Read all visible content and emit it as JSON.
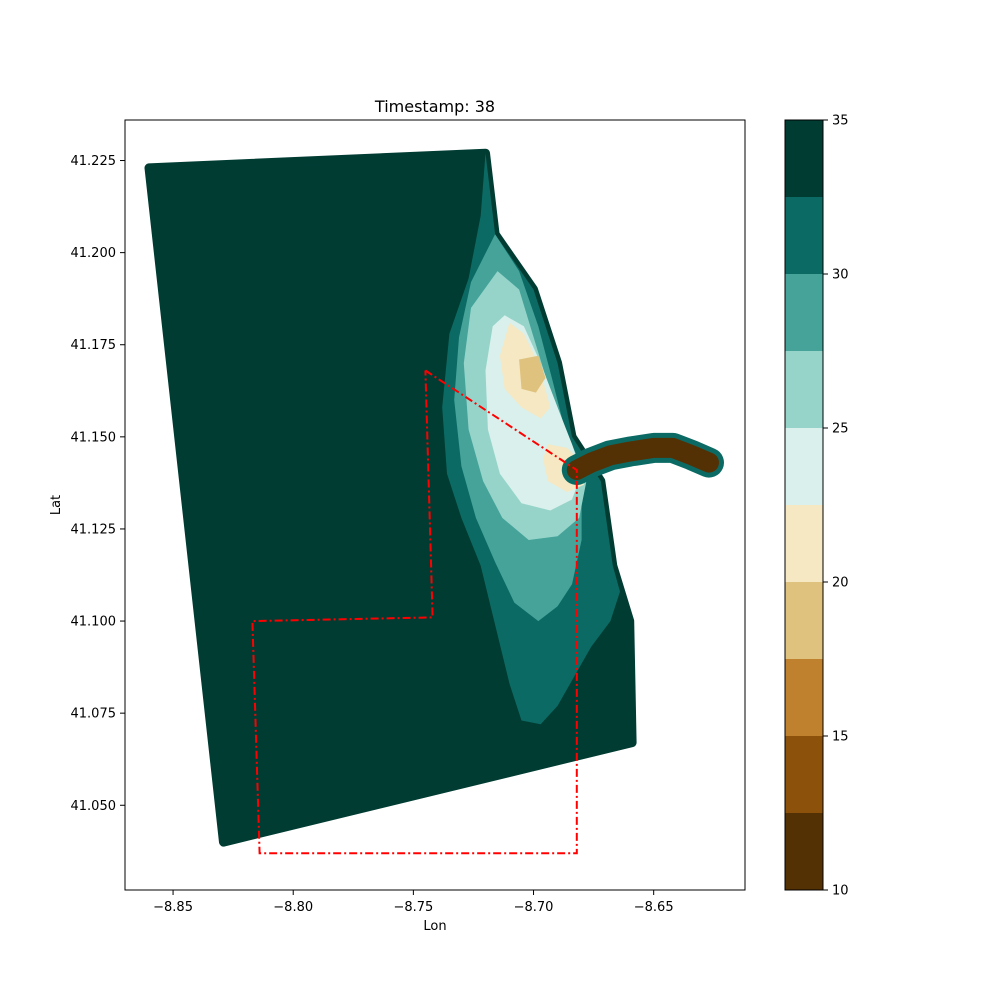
{
  "chart_data": {
    "type": "heatmap",
    "title": "Timestamp: 38",
    "xlabel": "Lon",
    "ylabel": "Lat",
    "xlim": [
      -8.87,
      -8.612
    ],
    "ylim": [
      41.027,
      41.236
    ],
    "x_ticks": [
      -8.85,
      -8.8,
      -8.75,
      -8.7,
      -8.65
    ],
    "x_tick_labels": [
      "−8.85",
      "−8.80",
      "−8.75",
      "−8.70",
      "−8.65"
    ],
    "y_ticks": [
      41.05,
      41.075,
      41.1,
      41.125,
      41.15,
      41.175,
      41.2,
      41.225
    ],
    "y_tick_labels": [
      "41.050",
      "41.075",
      "41.100",
      "41.125",
      "41.150",
      "41.175",
      "41.200",
      "41.225"
    ],
    "colorbar": {
      "range": [
        10,
        35
      ],
      "levels": [
        10,
        12.5,
        15,
        17.5,
        20,
        22.5,
        25,
        27.5,
        30,
        32.5,
        35
      ],
      "colors": [
        "#543005",
        "#8c510a",
        "#bf812d",
        "#dfc27d",
        "#f6e8c3",
        "#d9f0ec",
        "#96d4ca",
        "#45a39a",
        "#0b6b64",
        "#013c33"
      ],
      "ticks": [
        10,
        15,
        20,
        25,
        30,
        35
      ],
      "tick_labels": [
        "10",
        "15",
        "20",
        "25",
        "30",
        "35"
      ]
    },
    "domain_outline": [
      [
        -8.86,
        41.223
      ],
      [
        -8.72,
        41.227
      ],
      [
        -8.716,
        41.205
      ],
      [
        -8.7,
        41.19
      ],
      [
        -8.69,
        41.17
      ],
      [
        -8.684,
        41.15
      ],
      [
        -8.672,
        41.138
      ],
      [
        -8.667,
        41.115
      ],
      [
        -8.66,
        41.1
      ],
      [
        -8.659,
        41.067
      ],
      [
        -8.829,
        41.04
      ]
    ],
    "zones": [
      {
        "value": 31,
        "polygon": [
          [
            -8.72,
            41.227
          ],
          [
            -8.716,
            41.205
          ],
          [
            -8.7,
            41.19
          ],
          [
            -8.69,
            41.17
          ],
          [
            -8.684,
            41.15
          ],
          [
            -8.672,
            41.138
          ],
          [
            -8.667,
            41.115
          ],
          [
            -8.664,
            41.108
          ],
          [
            -8.668,
            41.1
          ],
          [
            -8.676,
            41.093
          ],
          [
            -8.683,
            41.085
          ],
          [
            -8.69,
            41.077
          ],
          [
            -8.697,
            41.072
          ],
          [
            -8.705,
            41.073
          ],
          [
            -8.71,
            41.083
          ],
          [
            -8.716,
            41.099
          ],
          [
            -8.722,
            41.115
          ],
          [
            -8.73,
            41.128
          ],
          [
            -8.736,
            41.14
          ],
          [
            -8.738,
            41.158
          ],
          [
            -8.735,
            41.178
          ],
          [
            -8.727,
            41.193
          ],
          [
            -8.722,
            41.21
          ]
        ]
      },
      {
        "value": 28.5,
        "polygon": [
          [
            -8.716,
            41.205
          ],
          [
            -8.706,
            41.195
          ],
          [
            -8.698,
            41.18
          ],
          [
            -8.692,
            41.165
          ],
          [
            -8.687,
            41.152
          ],
          [
            -8.68,
            41.14
          ],
          [
            -8.68,
            41.122
          ],
          [
            -8.684,
            41.11
          ],
          [
            -8.69,
            41.104
          ],
          [
            -8.698,
            41.1
          ],
          [
            -8.708,
            41.105
          ],
          [
            -8.716,
            41.116
          ],
          [
            -8.724,
            41.128
          ],
          [
            -8.73,
            41.142
          ],
          [
            -8.733,
            41.16
          ],
          [
            -8.731,
            41.177
          ],
          [
            -8.726,
            41.192
          ]
        ]
      },
      {
        "value": 26,
        "polygon": [
          [
            -8.715,
            41.195
          ],
          [
            -8.706,
            41.19
          ],
          [
            -8.699,
            41.175
          ],
          [
            -8.692,
            41.16
          ],
          [
            -8.684,
            41.148
          ],
          [
            -8.678,
            41.138
          ],
          [
            -8.681,
            41.128
          ],
          [
            -8.69,
            41.123
          ],
          [
            -8.702,
            41.122
          ],
          [
            -8.713,
            41.128
          ],
          [
            -8.721,
            41.138
          ],
          [
            -8.727,
            41.152
          ],
          [
            -8.729,
            41.17
          ],
          [
            -8.726,
            41.185
          ]
        ]
      },
      {
        "value": 23.5,
        "polygon": [
          [
            -8.712,
            41.183
          ],
          [
            -8.704,
            41.18
          ],
          [
            -8.697,
            41.17
          ],
          [
            -8.69,
            41.158
          ],
          [
            -8.684,
            41.148
          ],
          [
            -8.68,
            41.14
          ],
          [
            -8.684,
            41.133
          ],
          [
            -8.693,
            41.13
          ],
          [
            -8.705,
            41.132
          ],
          [
            -8.714,
            41.14
          ],
          [
            -8.719,
            41.152
          ],
          [
            -8.72,
            41.168
          ],
          [
            -8.717,
            41.18
          ]
        ]
      },
      {
        "value": 21,
        "polygon": [
          [
            -8.71,
            41.181
          ],
          [
            -8.704,
            41.178
          ],
          [
            -8.698,
            41.17
          ],
          [
            -8.693,
            41.158
          ],
          [
            -8.697,
            41.155
          ],
          [
            -8.705,
            41.158
          ],
          [
            -8.712,
            41.163
          ],
          [
            -8.714,
            41.172
          ]
        ]
      },
      {
        "value": 21,
        "polygon": [
          [
            -8.694,
            41.148
          ],
          [
            -8.686,
            41.147
          ],
          [
            -8.68,
            41.143
          ],
          [
            -8.679,
            41.137
          ],
          [
            -8.686,
            41.135
          ],
          [
            -8.694,
            41.138
          ],
          [
            -8.696,
            41.144
          ]
        ]
      },
      {
        "value": 18.5,
        "polygon": [
          [
            -8.706,
            41.171
          ],
          [
            -8.698,
            41.172
          ],
          [
            -8.695,
            41.166
          ],
          [
            -8.699,
            41.162
          ],
          [
            -8.705,
            41.163
          ]
        ]
      },
      {
        "value": 18.5,
        "polygon": [
          [
            -8.686,
            41.144
          ],
          [
            -8.68,
            41.145
          ],
          [
            -8.678,
            41.14
          ],
          [
            -8.682,
            41.137
          ],
          [
            -8.686,
            41.139
          ]
        ]
      }
    ],
    "river_centerline": [
      [
        -8.682,
        41.141
      ],
      [
        -8.676,
        41.143
      ],
      [
        -8.668,
        41.145
      ],
      [
        -8.66,
        41.146
      ],
      [
        -8.65,
        41.147
      ],
      [
        -8.642,
        41.147
      ],
      [
        -8.634,
        41.145
      ],
      [
        -8.627,
        41.143
      ]
    ],
    "river_value": 11,
    "boundary_polyline": [
      [
        -8.745,
        41.168
      ],
      [
        -8.682,
        41.141
      ],
      [
        -8.682,
        41.037
      ],
      [
        -8.814,
        41.037
      ],
      [
        -8.817,
        41.1
      ],
      [
        -8.742,
        41.101
      ],
      [
        -8.745,
        41.168
      ]
    ],
    "boundary_color": "#ff0000"
  }
}
